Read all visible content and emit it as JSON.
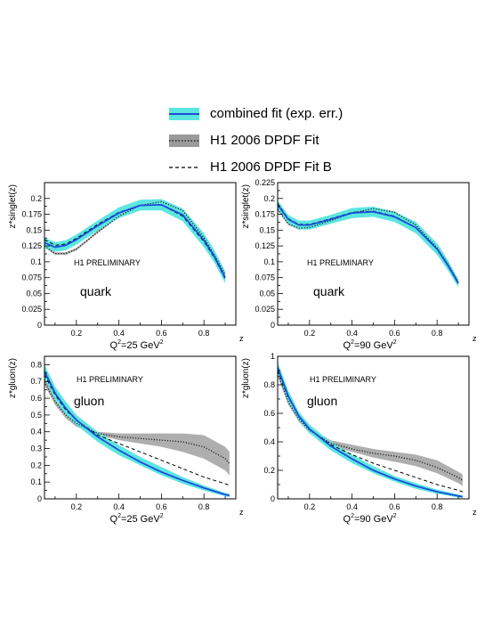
{
  "legend": {
    "items": [
      {
        "label": "combined fit (exp. err.)",
        "style": "band-line",
        "fill": "#5ce6e0",
        "line": "#1a4fd8"
      },
      {
        "label": "H1 2006 DPDF Fit",
        "style": "band-dotted",
        "fill": "#9a9a9a",
        "line": "#222222"
      },
      {
        "label": "H1 2006 DPDF Fit B",
        "style": "dashed",
        "line": "#000000"
      }
    ]
  },
  "colors": {
    "combined_band": "#5ce6e0",
    "combined_line": "#1a4fd8",
    "fitA_band": "#a0a0a0",
    "fitA_line": "#222222",
    "fitB_line": "#000000"
  },
  "chart_data": [
    {
      "type": "line",
      "ylabel": "z*singlet(z)",
      "xlabel": "z",
      "qlabel": {
        "pre": "Q",
        "sup1": "2",
        "mid": "=25 GeV",
        "sup2": "2"
      },
      "annotation": "H1 PRELIMINARY",
      "parton": "quark",
      "xlim": [
        0.05,
        0.95
      ],
      "ylim": [
        0,
        0.225
      ],
      "xticks": [
        0.2,
        0.4,
        0.6,
        0.8
      ],
      "yticks": [
        0,
        0.025,
        0.05,
        0.075,
        0.1,
        0.125,
        0.15,
        0.175,
        0.2
      ],
      "x": [
        0.05,
        0.1,
        0.15,
        0.2,
        0.3,
        0.4,
        0.5,
        0.6,
        0.7,
        0.8,
        0.85,
        0.9
      ],
      "series": [
        {
          "role": "combined",
          "values": [
            0.13,
            0.123,
            0.126,
            0.135,
            0.157,
            0.177,
            0.189,
            0.19,
            0.174,
            0.134,
            0.108,
            0.075
          ],
          "band_lower": [
            0.122,
            0.116,
            0.118,
            0.127,
            0.149,
            0.169,
            0.181,
            0.181,
            0.164,
            0.123,
            0.098,
            0.066
          ],
          "band_upper": [
            0.138,
            0.131,
            0.134,
            0.143,
            0.165,
            0.186,
            0.198,
            0.199,
            0.184,
            0.145,
            0.118,
            0.085
          ]
        },
        {
          "role": "fitA",
          "values": [
            0.125,
            0.113,
            0.113,
            0.12,
            0.147,
            0.172,
            0.189,
            0.195,
            0.181,
            0.138,
            0.11,
            0.08
          ],
          "band_lower": [
            0.123,
            0.111,
            0.111,
            0.118,
            0.145,
            0.17,
            0.187,
            0.193,
            0.179,
            0.136,
            0.108,
            0.078
          ],
          "band_upper": [
            0.127,
            0.115,
            0.115,
            0.122,
            0.149,
            0.174,
            0.191,
            0.197,
            0.183,
            0.14,
            0.112,
            0.082
          ]
        },
        {
          "role": "fitB",
          "values": [
            0.135,
            0.126,
            0.128,
            0.137,
            0.159,
            0.178,
            0.189,
            0.19,
            0.172,
            0.132,
            0.106,
            0.073
          ]
        }
      ]
    },
    {
      "type": "line",
      "ylabel": "z*singlet(z)",
      "xlabel": "z",
      "qlabel": {
        "pre": "Q",
        "sup1": "2",
        "mid": "=90 GeV",
        "sup2": "2"
      },
      "annotation": "H1 PRELIMINARY",
      "parton": "quark",
      "xlim": [
        0.05,
        0.95
      ],
      "ylim": [
        0,
        0.225
      ],
      "xticks": [
        0.2,
        0.4,
        0.6,
        0.8
      ],
      "yticks": [
        0,
        0.025,
        0.05,
        0.075,
        0.1,
        0.125,
        0.15,
        0.175,
        0.2,
        0.225
      ],
      "x": [
        0.05,
        0.1,
        0.15,
        0.2,
        0.3,
        0.4,
        0.5,
        0.6,
        0.7,
        0.8,
        0.85,
        0.9
      ],
      "series": [
        {
          "role": "combined",
          "values": [
            0.19,
            0.167,
            0.158,
            0.158,
            0.167,
            0.177,
            0.179,
            0.171,
            0.154,
            0.12,
            0.095,
            0.066
          ],
          "band_lower": [
            0.183,
            0.16,
            0.151,
            0.151,
            0.16,
            0.169,
            0.171,
            0.163,
            0.145,
            0.111,
            0.087,
            0.06
          ],
          "band_upper": [
            0.197,
            0.174,
            0.165,
            0.165,
            0.174,
            0.185,
            0.187,
            0.179,
            0.163,
            0.129,
            0.103,
            0.072
          ]
        },
        {
          "role": "fitA",
          "values": [
            0.183,
            0.16,
            0.153,
            0.154,
            0.165,
            0.177,
            0.184,
            0.178,
            0.158,
            0.122,
            0.097,
            0.068
          ],
          "band_lower": [
            0.181,
            0.158,
            0.151,
            0.152,
            0.163,
            0.175,
            0.182,
            0.176,
            0.156,
            0.12,
            0.095,
            0.066
          ],
          "band_upper": [
            0.185,
            0.162,
            0.155,
            0.156,
            0.167,
            0.179,
            0.186,
            0.18,
            0.16,
            0.124,
            0.099,
            0.07
          ]
        },
        {
          "role": "fitB",
          "values": [
            0.192,
            0.168,
            0.159,
            0.159,
            0.168,
            0.178,
            0.18,
            0.172,
            0.154,
            0.12,
            0.094,
            0.065
          ]
        }
      ]
    },
    {
      "type": "line",
      "ylabel": "z*gluon(z)",
      "xlabel": "z",
      "qlabel": {
        "pre": "Q",
        "sup1": "2",
        "mid": "=25 GeV",
        "sup2": "2"
      },
      "annotation": "H1 PRELIMINARY",
      "parton": "gluon",
      "xlim": [
        0.05,
        0.95
      ],
      "ylim": [
        0,
        0.85
      ],
      "xticks": [
        0.2,
        0.4,
        0.6,
        0.8
      ],
      "yticks": [
        0,
        0.1,
        0.2,
        0.3,
        0.4,
        0.5,
        0.6,
        0.7,
        0.8
      ],
      "x": [
        0.05,
        0.1,
        0.15,
        0.2,
        0.3,
        0.4,
        0.5,
        0.6,
        0.7,
        0.8,
        0.9,
        0.92
      ],
      "series": [
        {
          "role": "combined",
          "values": [
            0.76,
            0.63,
            0.54,
            0.47,
            0.37,
            0.29,
            0.22,
            0.16,
            0.11,
            0.065,
            0.025,
            0.02
          ],
          "band_lower": [
            0.72,
            0.59,
            0.5,
            0.44,
            0.34,
            0.26,
            0.2,
            0.14,
            0.09,
            0.05,
            0.015,
            0.01
          ],
          "band_upper": [
            0.8,
            0.67,
            0.58,
            0.5,
            0.4,
            0.32,
            0.25,
            0.19,
            0.13,
            0.08,
            0.035,
            0.03
          ]
        },
        {
          "role": "fitA",
          "values": [
            0.7,
            0.58,
            0.5,
            0.45,
            0.39,
            0.37,
            0.36,
            0.35,
            0.34,
            0.31,
            0.24,
            0.21
          ],
          "band_lower": [
            0.68,
            0.56,
            0.48,
            0.43,
            0.38,
            0.35,
            0.33,
            0.31,
            0.28,
            0.24,
            0.17,
            0.14
          ],
          "band_upper": [
            0.72,
            0.6,
            0.52,
            0.47,
            0.4,
            0.39,
            0.39,
            0.39,
            0.39,
            0.38,
            0.31,
            0.28
          ]
        },
        {
          "role": "fitB",
          "values": [
            0.74,
            0.62,
            0.53,
            0.47,
            0.38,
            0.33,
            0.28,
            0.23,
            0.18,
            0.13,
            0.09,
            0.08
          ]
        }
      ]
    },
    {
      "type": "line",
      "ylabel": "z*gluon(z)",
      "xlabel": "z",
      "qlabel": {
        "pre": "Q",
        "sup1": "2",
        "mid": "=90 GeV",
        "sup2": "2"
      },
      "annotation": "H1 PRELIMINARY",
      "parton": "gluon",
      "xlim": [
        0.05,
        0.95
      ],
      "ylim": [
        0,
        1.0
      ],
      "xticks": [
        0.2,
        0.4,
        0.6,
        0.8
      ],
      "yticks": [
        0,
        0.2,
        0.4,
        0.6,
        0.8,
        1
      ],
      "x": [
        0.05,
        0.1,
        0.15,
        0.2,
        0.3,
        0.4,
        0.5,
        0.6,
        0.7,
        0.8,
        0.9,
        0.92
      ],
      "series": [
        {
          "role": "combined",
          "values": [
            0.92,
            0.72,
            0.58,
            0.49,
            0.37,
            0.28,
            0.2,
            0.14,
            0.09,
            0.05,
            0.02,
            0.015
          ],
          "band_lower": [
            0.88,
            0.68,
            0.55,
            0.46,
            0.34,
            0.25,
            0.18,
            0.12,
            0.07,
            0.035,
            0.01,
            0.005
          ],
          "band_upper": [
            0.96,
            0.76,
            0.61,
            0.52,
            0.4,
            0.31,
            0.23,
            0.16,
            0.11,
            0.065,
            0.03,
            0.025
          ]
        },
        {
          "role": "fitA",
          "values": [
            0.88,
            0.68,
            0.56,
            0.48,
            0.39,
            0.35,
            0.32,
            0.3,
            0.27,
            0.22,
            0.15,
            0.13
          ],
          "band_lower": [
            0.86,
            0.66,
            0.54,
            0.46,
            0.37,
            0.33,
            0.29,
            0.26,
            0.23,
            0.18,
            0.11,
            0.09
          ],
          "band_upper": [
            0.9,
            0.7,
            0.58,
            0.5,
            0.41,
            0.38,
            0.35,
            0.33,
            0.31,
            0.27,
            0.19,
            0.17
          ]
        },
        {
          "role": "fitB",
          "values": [
            0.9,
            0.71,
            0.58,
            0.49,
            0.38,
            0.31,
            0.25,
            0.2,
            0.15,
            0.1,
            0.06,
            0.05
          ]
        }
      ]
    }
  ]
}
